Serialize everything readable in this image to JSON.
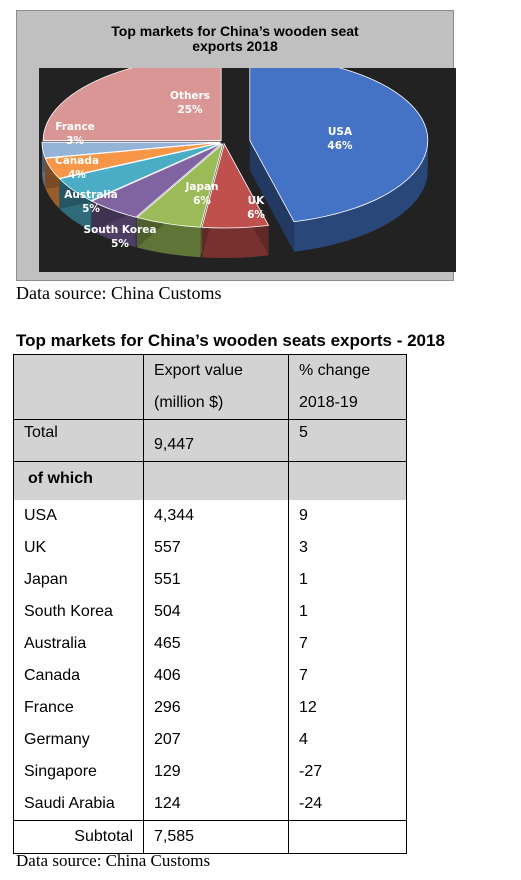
{
  "chart_data": {
    "type": "pie",
    "title": "Top markets for  China’s wooden seat\nexports 2018",
    "slices": [
      {
        "label": "USA",
        "value": 46,
        "value_label": "46%",
        "color": "#4472c4"
      },
      {
        "label": "UK",
        "value": 6,
        "value_label": "6%",
        "color": "#c0504d"
      },
      {
        "label": "Japan",
        "value": 6,
        "value_label": "6%",
        "color": "#9bbb59"
      },
      {
        "label": "South Korea",
        "value": 5,
        "value_label": "5%",
        "color": "#8064a2"
      },
      {
        "label": "Australia",
        "value": 5,
        "value_label": "5%",
        "color": "#4bacc6"
      },
      {
        "label": "Canada",
        "value": 4,
        "value_label": "4%",
        "color": "#f79646"
      },
      {
        "label": "France",
        "value": 3,
        "value_label": "3%",
        "color": "#95b3d7"
      },
      {
        "label": "Others",
        "value": 25,
        "value_label": "25%",
        "color": "#d99694"
      }
    ],
    "legend": "none",
    "style": "3d-exploded"
  },
  "source_text": "Data source: China Customs",
  "table": {
    "title": "Top markets for China’s wooden seats exports - 2018",
    "headers": [
      {
        "line1": "",
        "line2": ""
      },
      {
        "line1": "Export value",
        "line2": "(million $)"
      },
      {
        "line1": "% change",
        "line2": "2018-19"
      }
    ],
    "total": {
      "label": "Total",
      "value": "9,447",
      "change": "5"
    },
    "of_which_label": "of which",
    "rows": [
      {
        "country": "USA",
        "value": "4,344",
        "change": "9"
      },
      {
        "country": "UK",
        "value": "557",
        "change": "3"
      },
      {
        "country": "Japan",
        "value": "551",
        "change": "1"
      },
      {
        "country": "South Korea",
        "value": "504",
        "change": "1"
      },
      {
        "country": "Australia",
        "value": "465",
        "change": "7"
      },
      {
        "country": "Canada",
        "value": "406",
        "change": "7"
      },
      {
        "country": "France",
        "value": "296",
        "change": "12"
      },
      {
        "country": "Germany",
        "value": "207",
        "change": "4"
      },
      {
        "country": "Singapore",
        "value": "129",
        "change": "-27"
      },
      {
        "country": "Saudi Arabia",
        "value": "124",
        "change": "-24"
      }
    ],
    "subtotal": {
      "label": "Subtotal",
      "value": "7,585",
      "change": ""
    }
  }
}
